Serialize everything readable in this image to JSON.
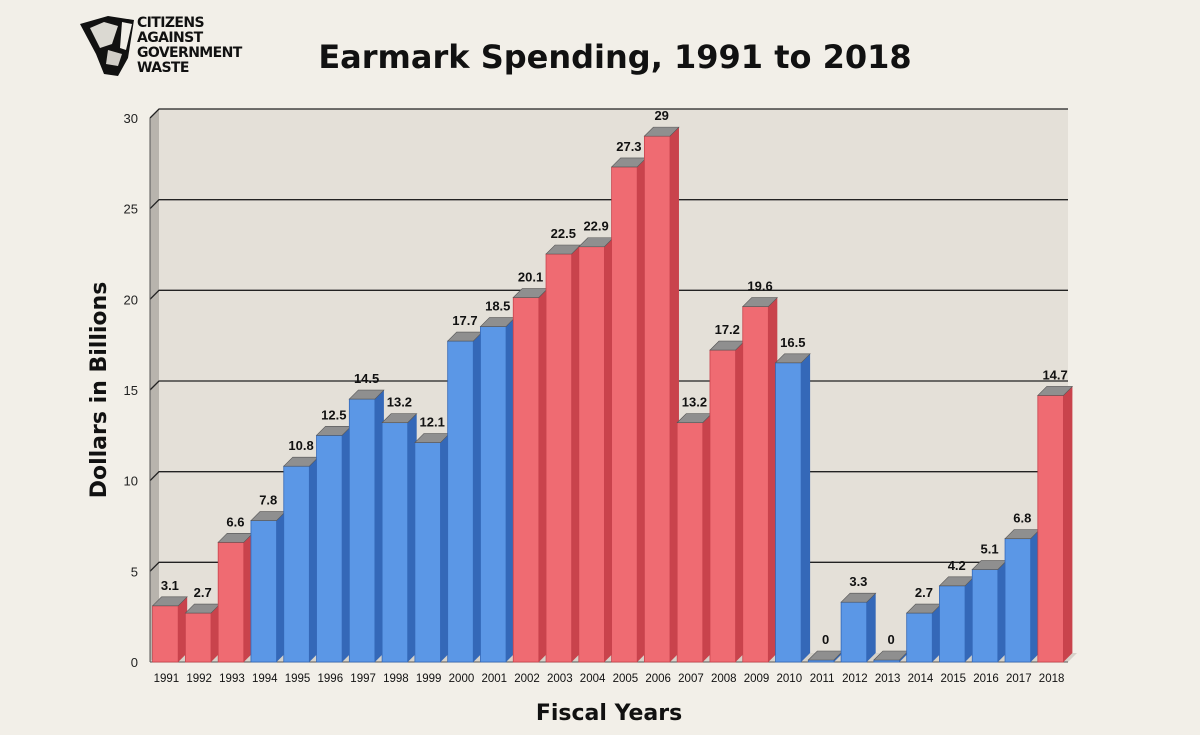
{
  "logo": {
    "lines": [
      "CITIZENS",
      "AGAINST",
      "GOVERNMENT",
      "WASTE"
    ]
  },
  "colors": {
    "red": "#ef6b72",
    "red_side": "#c9434c",
    "blue": "#5b97e6",
    "blue_side": "#3468b8",
    "top_gray": "#8f8f8f",
    "plot_bg": "#e4e0d8"
  },
  "chart_data": {
    "type": "bar",
    "title": "Earmark Spending, 1991 to 2018",
    "xlabel": "Fiscal Years",
    "ylabel": "Dollars in Billions",
    "ylim": [
      0,
      30
    ],
    "yticks": [
      0,
      5,
      10,
      15,
      20,
      25,
      30
    ],
    "grid": true,
    "categories": [
      "1991",
      "1992",
      "1993",
      "1994",
      "1995",
      "1996",
      "1997",
      "1998",
      "1999",
      "2000",
      "2001",
      "2002",
      "2003",
      "2004",
      "2005",
      "2006",
      "2007",
      "2008",
      "2009",
      "2010",
      "2011",
      "2012",
      "2013",
      "2014",
      "2015",
      "2016",
      "2017",
      "2018"
    ],
    "values": [
      3.1,
      2.7,
      6.6,
      7.8,
      10.8,
      12.5,
      14.5,
      13.2,
      12.1,
      17.7,
      18.5,
      20.1,
      22.5,
      22.9,
      27.3,
      29,
      13.2,
      17.2,
      19.6,
      16.5,
      0,
      3.3,
      0,
      2.7,
      4.2,
      5.1,
      6.8,
      14.7
    ],
    "labels": [
      "3.1",
      "2.7",
      "6.6",
      "7.8",
      "10.8",
      "12.5",
      "14.5",
      "13.2",
      "12.1",
      "17.7",
      "18.5",
      "20.1",
      "22.5",
      "22.9",
      "27.3",
      "29",
      "13.2",
      "17.2",
      "19.6",
      "16.5",
      "0",
      "3.3",
      "0",
      "2.7",
      "4.2",
      "5.1",
      "6.8",
      "14.7"
    ],
    "party": [
      "R",
      "R",
      "R",
      "B",
      "B",
      "B",
      "B",
      "B",
      "B",
      "B",
      "B",
      "R",
      "R",
      "R",
      "R",
      "R",
      "R",
      "R",
      "R",
      "B",
      "B",
      "B",
      "B",
      "B",
      "B",
      "B",
      "B",
      "R"
    ]
  }
}
